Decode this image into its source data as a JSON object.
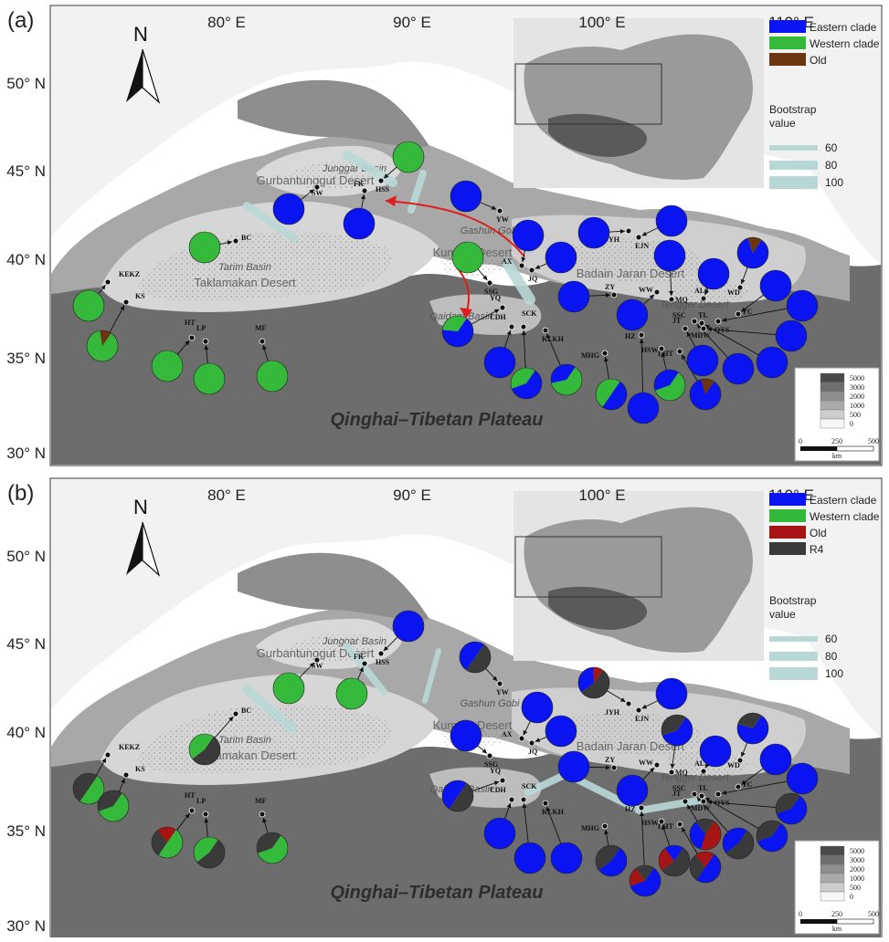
{
  "panels": [
    {
      "id": "a",
      "label": "(a)",
      "legend": [
        {
          "name": "Eastern clade",
          "color": "#0a14f0"
        },
        {
          "name": "Western clade",
          "color": "#35b93a"
        },
        {
          "name": "Old",
          "color": "#6b3510"
        }
      ],
      "bootstrap_title": "Bootstrap",
      "bootstrap_title2": "value",
      "bootstrap_values": [
        "60",
        "80",
        "100"
      ]
    },
    {
      "id": "b",
      "label": "(b)",
      "legend": [
        {
          "name": "Eastern clade",
          "color": "#0a14f0"
        },
        {
          "name": "Western clade",
          "color": "#35b93a"
        },
        {
          "name": "Old",
          "color": "#a81414"
        },
        {
          "name": "R4",
          "color": "#3a3a3a"
        }
      ],
      "bootstrap_title": "Bootstrap",
      "bootstrap_title2": "value",
      "bootstrap_values": [
        "60",
        "80",
        "100"
      ]
    }
  ],
  "axes": {
    "lon_labels": [
      "80° E",
      "90° E",
      "100° E",
      "110° E"
    ],
    "lat_labels": [
      "50° N",
      "45° N",
      "40° N",
      "35° N",
      "30° N"
    ]
  },
  "elevation_legend": [
    "5000",
    "3000",
    "2000",
    "1000",
    "500",
    "0"
  ],
  "scale_bar": {
    "ticks": [
      "0",
      "250",
      "500"
    ],
    "unit": "km"
  },
  "regions": {
    "junggar": "Junggar Basin",
    "gurbantunggut": "Gurbantunggut Desert",
    "tarim": "Tarim Basin",
    "taklamakan": "Taklamakan Desert",
    "gashun": "Gashun Gobi",
    "kumtag": "Kumtag Desert",
    "qaidam": "Qaidam Basin",
    "badain": "Badain Jaran Desert",
    "tengger": "Tengger Desert",
    "plateau": "Qinghai–Tibetan Plateau"
  },
  "sites": [
    "KEKZ",
    "KS",
    "BC",
    "HT",
    "LP",
    "MF",
    "SW",
    "FK",
    "HSS",
    "YW",
    "AX",
    "JQ",
    "SSG",
    "YQ",
    "CDH",
    "SCK",
    "KLKH",
    "MHG",
    "HZ",
    "HSW",
    "LHT",
    "JT",
    "ZY",
    "WW",
    "MQ",
    "ALS",
    "WD",
    "YC",
    "QYS",
    "MDW",
    "SSC",
    "TL",
    "JYH",
    "EJN"
  ],
  "compass": "N"
}
